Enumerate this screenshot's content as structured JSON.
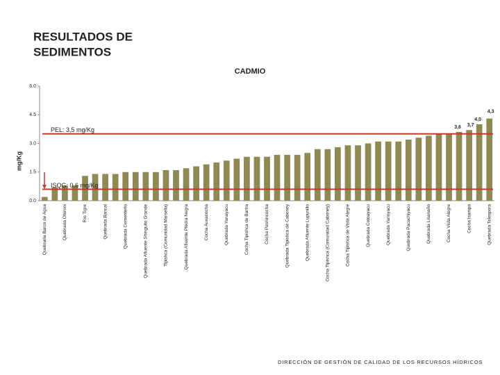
{
  "header": {
    "title_lines": [
      "RESULTADOS DE",
      "SEDIMENTOS"
    ]
  },
  "chart_data": {
    "type": "bar",
    "title": "CADMIO",
    "y_label": "mg/Kg",
    "color": "#8f8a55",
    "categories": [
      "Quebrada Barco de Agua",
      null,
      "Quebrada Otoroni",
      null,
      "Río Tigre",
      null,
      "Quebrada Bancal",
      null,
      "Quebrada Cementerio",
      null,
      "Quebrada Afluente Shinguito Grande",
      null,
      "Tipishca (Comunidad Marsella)",
      null,
      "Quebrada Afluente Piedra Negra",
      null,
      "Cocha Auxacocha",
      null,
      "Quebrada Yanayacu",
      null,
      "Cocha Tipishca de Bartra",
      null,
      "Cocha Pashincocha",
      null,
      "Quebrada Tipishca de Caboney",
      null,
      "Quebrada Afluente Lupunillo",
      null,
      "Cocha Tipishca (Comunidad Caboney)",
      null,
      "Cocha Tipishca de Vista Alegre",
      null,
      "Quebrada Cotoayacu",
      null,
      "Quebrada Yarinyacu",
      null,
      "Quebrada Pacachiyacu",
      null,
      "Quebrada Lisanaño",
      null,
      "Cocha Vista Alegre",
      null,
      "Cocha Isampa",
      null,
      "Quebrada Telespora"
    ],
    "values": [
      0.2,
      0.7,
      0.8,
      0.8,
      1.3,
      1.4,
      1.4,
      1.4,
      1.5,
      1.5,
      1.5,
      1.5,
      1.6,
      1.6,
      1.7,
      1.8,
      1.9,
      2.0,
      2.1,
      2.2,
      2.3,
      2.3,
      2.3,
      2.4,
      2.4,
      2.4,
      2.5,
      2.7,
      2.7,
      2.8,
      2.9,
      2.9,
      3.0,
      3.1,
      3.1,
      3.1,
      3.2,
      3.3,
      3.4,
      3.5,
      3.5,
      3.6,
      3.7,
      4.0,
      4.3
    ],
    "value_labels": [
      null,
      null,
      null,
      null,
      null,
      null,
      null,
      null,
      null,
      null,
      null,
      null,
      null,
      null,
      null,
      null,
      null,
      null,
      null,
      null,
      null,
      null,
      null,
      null,
      null,
      null,
      null,
      null,
      null,
      null,
      null,
      null,
      null,
      null,
      null,
      null,
      null,
      null,
      null,
      null,
      null,
      "3,6",
      "3,7",
      "4,0",
      "4,3"
    ],
    "ylim": [
      0,
      6
    ],
    "yticks": [
      {
        "value": 0,
        "label": "0.0"
      },
      1.5,
      {
        "value": 3,
        "label": "3.0"
      },
      4.5,
      {
        "value": 6,
        "label": "6.0"
      }
    ],
    "thresholds": [
      {
        "label": "PEL: 3,5 mg/Kg",
        "value": 3.5,
        "color": "#c0392b"
      },
      {
        "label": "ISQG: 0,6 mg/Kg",
        "value": 0.6,
        "color": "#c0392b"
      }
    ]
  },
  "footer": {
    "text": "DIRECCIÓN DE GESTIÓN DE CALIDAD DE LOS RECURSOS HÍDRICOS"
  }
}
